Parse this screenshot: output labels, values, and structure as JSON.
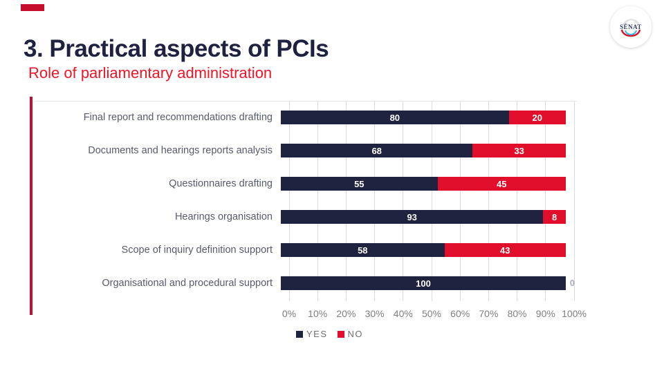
{
  "slide": {
    "title": "3. Practical aspects of PCIs",
    "subtitle": "Role of parliamentary administration",
    "logo_text": "SÉNAT"
  },
  "colors": {
    "navy": "#1F2340",
    "bar_red": "#E00D2B",
    "accent_line_red": "#C30D2E",
    "subtitle_red": "#F21325",
    "gridline": "#DCDCE0",
    "axis_text": "#7F7F7F",
    "category_text": "#575A6B",
    "zero_label": "#ACADB9"
  },
  "chart_data": {
    "type": "bar",
    "orientation": "horizontal",
    "stacked": true,
    "categories": [
      "Final report and recommendations drafting",
      "Documents and hearings reports analysis",
      "Questionnaires drafting",
      "Hearings organisation",
      "Scope of inquiry definition support",
      "Organisational and procedural support"
    ],
    "series": [
      {
        "name": "YES",
        "color": "#1F2340",
        "values": [
          80,
          68,
          55,
          93,
          58,
          100
        ]
      },
      {
        "name": "NO",
        "color": "#E00D2B",
        "values": [
          20,
          33,
          45,
          8,
          43,
          0
        ]
      }
    ],
    "x_ticks": [
      "0%",
      "10%",
      "20%",
      "30%",
      "40%",
      "50%",
      "60%",
      "70%",
      "80%",
      "90%",
      "100%"
    ],
    "xlim": [
      0,
      100
    ],
    "grid": "vertical",
    "legend_position": "bottom",
    "data_labels": "inside segment, white bold"
  }
}
